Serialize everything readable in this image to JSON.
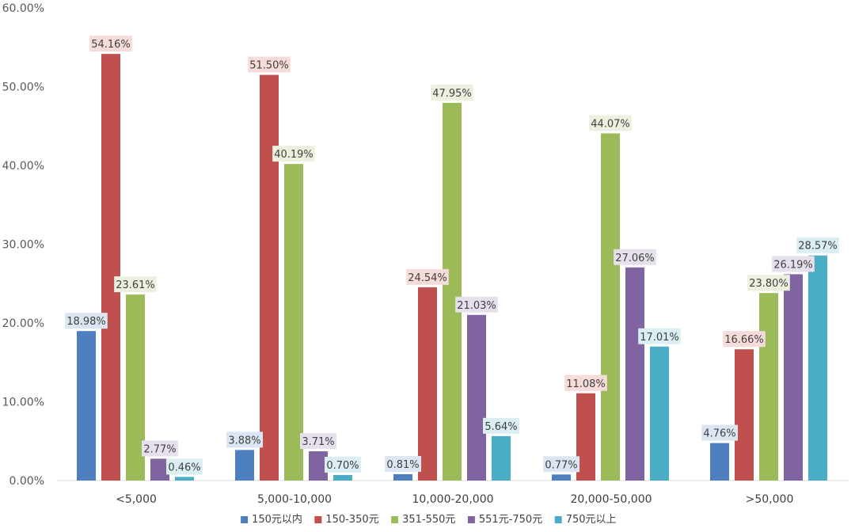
{
  "chart_data": {
    "type": "bar",
    "categories": [
      "<5,000",
      "5,000-10,000",
      "10,000-20,000",
      "20,000-50,000",
      ">50,000"
    ],
    "ylim": [
      0,
      60
    ],
    "yticks": [
      "0.00%",
      "10.00%",
      "20.00%",
      "30.00%",
      "40.00%",
      "50.00%",
      "60.00%"
    ],
    "grid": false,
    "legend_position": "bottom",
    "series": [
      {
        "name": "150元以内",
        "color": "#4E7FC1",
        "label_bg": "#DCE5F2",
        "values": [
          18.98,
          3.88,
          0.81,
          0.77,
          4.76
        ],
        "labels": [
          "18.98%",
          "3.88%",
          "0.81%",
          "0.77%",
          "4.76%"
        ]
      },
      {
        "name": "150-350元",
        "color": "#C0504D",
        "label_bg": "#F5DCDB",
        "values": [
          54.16,
          51.5,
          24.54,
          11.08,
          16.66
        ],
        "labels": [
          "54.16%",
          "51.50%",
          "24.54%",
          "11.08%",
          "16.66%"
        ]
      },
      {
        "name": "351-550元",
        "color": "#9BBB59",
        "label_bg": "#EBF1DE",
        "values": [
          23.61,
          40.19,
          47.95,
          44.07,
          23.8
        ],
        "labels": [
          "23.61%",
          "40.19%",
          "47.95%",
          "44.07%",
          "23.80%"
        ]
      },
      {
        "name": "551元-750元",
        "color": "#8064A2",
        "label_bg": "#E5E0EC",
        "values": [
          2.77,
          3.71,
          21.03,
          27.06,
          26.19
        ],
        "labels": [
          "2.77%",
          "3.71%",
          "21.03%",
          "27.06%",
          "26.19%"
        ]
      },
      {
        "name": "750元以上",
        "color": "#4BACC6",
        "label_bg": "#DAEEF3",
        "values": [
          0.46,
          0.7,
          5.64,
          17.01,
          28.57
        ],
        "labels": [
          "0.46%",
          "0.70%",
          "5.64%",
          "17.01%",
          "28.57%"
        ]
      }
    ]
  }
}
